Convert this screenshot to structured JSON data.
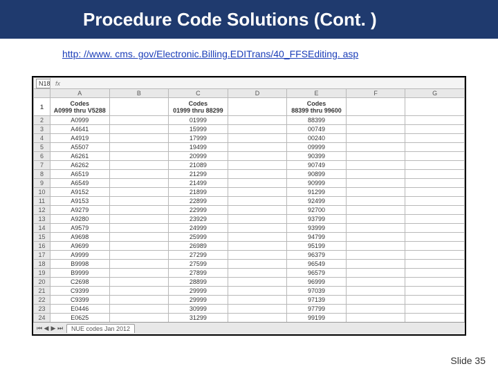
{
  "slide": {
    "title": "Procedure Code Solutions (Cont. )",
    "url": "http: //www. cms. gov/Electronic.Billing.EDITrans/40_FFSEditing. asp",
    "footer": "Slide 35",
    "title_bg": "#1f3a6e",
    "title_color": "#ffffff"
  },
  "spreadsheet": {
    "cell_ref": "N18",
    "fx_label": "fx",
    "columns": [
      "A",
      "B",
      "C",
      "D",
      "E",
      "F",
      "G"
    ],
    "tab_label": "NUE codes Jan 2012",
    "header_row": {
      "A": "Codes\nA0999 thru V5288",
      "C": "Codes\n01999 thru 88299",
      "E": "Codes\n88399 thru 99600"
    },
    "rows": [
      {
        "n": "2",
        "A": "A0999",
        "C": "01999",
        "E": "88399"
      },
      {
        "n": "3",
        "A": "A4641",
        "C": "15999",
        "E": "00749"
      },
      {
        "n": "4",
        "A": "A4919",
        "C": "17999",
        "E": "00240"
      },
      {
        "n": "5",
        "A": "A5507",
        "C": "19499",
        "E": "09999"
      },
      {
        "n": "6",
        "A": "A6261",
        "C": "20999",
        "E": "90399"
      },
      {
        "n": "7",
        "A": "A6262",
        "C": "21089",
        "E": "90749"
      },
      {
        "n": "8",
        "A": "A6519",
        "C": "21299",
        "E": "90899"
      },
      {
        "n": "9",
        "A": "A6549",
        "C": "21499",
        "E": "90999"
      },
      {
        "n": "10",
        "A": "A9152",
        "C": "21899",
        "E": "91299"
      },
      {
        "n": "11",
        "A": "A9153",
        "C": "22899",
        "E": "92499"
      },
      {
        "n": "12",
        "A": "A9279",
        "C": "22999",
        "E": "92700"
      },
      {
        "n": "13",
        "A": "A9280",
        "C": "23929",
        "E": "93799"
      },
      {
        "n": "14",
        "A": "A9579",
        "C": "24999",
        "E": "93999"
      },
      {
        "n": "15",
        "A": "A9698",
        "C": "25999",
        "E": "94799"
      },
      {
        "n": "16",
        "A": "A9699",
        "C": "26989",
        "E": "95199"
      },
      {
        "n": "17",
        "A": "A9999",
        "C": "27299",
        "E": "96379"
      },
      {
        "n": "18",
        "A": "B9998",
        "C": "27599",
        "E": "96549"
      },
      {
        "n": "19",
        "A": "B9999",
        "C": "27899",
        "E": "96579"
      },
      {
        "n": "20",
        "A": "C2698",
        "C": "28899",
        "E": "96999"
      },
      {
        "n": "21",
        "A": "C9399",
        "C": "29999",
        "E": "97039"
      },
      {
        "n": "22",
        "A": "C9399",
        "C": "29999",
        "E": "97139"
      },
      {
        "n": "23",
        "A": "E0446",
        "C": "30999",
        "E": "97799"
      },
      {
        "n": "24",
        "A": "E0625",
        "C": "31299",
        "E": "99199"
      }
    ]
  }
}
